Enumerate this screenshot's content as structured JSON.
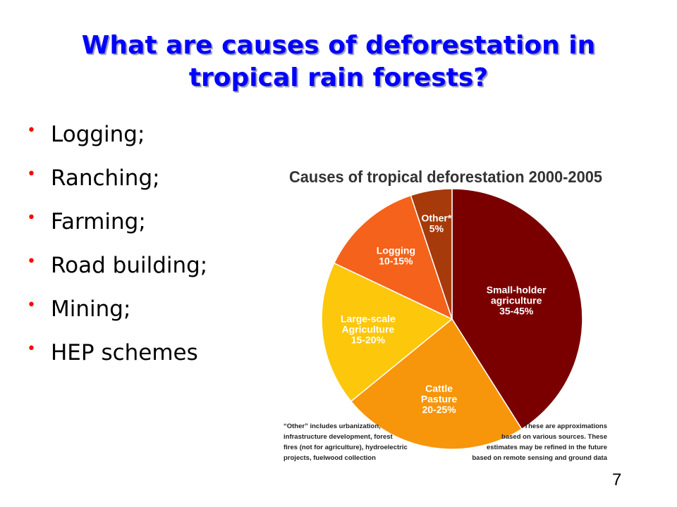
{
  "slide": {
    "title_line1": "What are causes of deforestation in",
    "title_line2": "tropical rain forests?",
    "bullets": [
      "Logging;",
      "Ranching;",
      "Farming;",
      "Road building;",
      "Mining;",
      "HEP schemes"
    ],
    "page_number": "7",
    "title_color": "#0000ff",
    "bullet_marker_color": "#ff0000"
  },
  "chart_data": {
    "type": "pie",
    "title": "Causes of tropical deforestation 2000-2005",
    "slices": [
      {
        "label_lines": [
          "Small-holder",
          "agriculture",
          "35-45%"
        ],
        "value": 40,
        "color": "#7a0000",
        "text_color": "#ffffff"
      },
      {
        "label_lines": [
          "Cattle",
          "Pasture",
          "20-25%"
        ],
        "value": 22.5,
        "color": "#f7960a",
        "text_color": "#ffffff"
      },
      {
        "label_lines": [
          "Large-scale",
          "Agriculture",
          "15-20%"
        ],
        "value": 17.5,
        "color": "#fdc70c",
        "text_color": "#ffffff"
      },
      {
        "label_lines": [
          "Logging",
          "10-15%"
        ],
        "value": 12.5,
        "color": "#f4621b",
        "text_color": "#ffffff"
      },
      {
        "label_lines": [
          "Other*",
          "5%"
        ],
        "value": 5,
        "color": "#a63a0a",
        "text_color": "#ffffff"
      }
    ],
    "notes": {
      "left": [
        "“Other” includes urbanization,",
        "infrastructure development, forest",
        "fires (not for agriculture), hydroelectric",
        "projects, fuelwood collection"
      ],
      "right": [
        "These are approximations",
        "based on various sources. These",
        "estimates may be refined in the future",
        "based on remote sensing and ground data"
      ]
    }
  }
}
